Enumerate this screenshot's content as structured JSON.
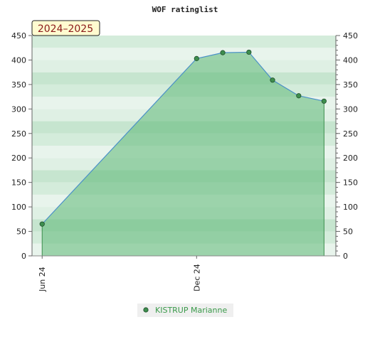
{
  "chart_data": {
    "type": "area",
    "title": "WOF ratinglist",
    "season_badge": "2024–2025",
    "xlabel": "",
    "ylabel": "",
    "ylim": [
      0,
      450
    ],
    "y_ticks": [
      0,
      50,
      100,
      150,
      200,
      250,
      300,
      350,
      400,
      450
    ],
    "x_ticks": [
      {
        "label": "Jun 24",
        "date": "2024-06-01"
      },
      {
        "label": "Dec 24",
        "date": "2024-12-01"
      }
    ],
    "x_range": [
      "2024-05-20",
      "2025-05-15"
    ],
    "grid": "horizontal bands",
    "legend_position": "bottom-center",
    "series": [
      {
        "name": "KISTRUP Marianne",
        "points": [
          {
            "x": "2024-06-01",
            "y": 65
          },
          {
            "x": "2024-12-01",
            "y": 403
          },
          {
            "x": "2025-01-01",
            "y": 415
          },
          {
            "x": "2025-02-01",
            "y": 416
          },
          {
            "x": "2025-03-01",
            "y": 359
          },
          {
            "x": "2025-04-01",
            "y": 327
          },
          {
            "x": "2025-05-01",
            "y": 316
          }
        ]
      }
    ],
    "colors": {
      "area_fill": "#5cb877",
      "line": "#4a90c8",
      "marker": "#3e8e4e",
      "band_light": "#e8f4ec",
      "band_dark": "#c6e5cf",
      "badge_bg": "#fffbd0",
      "badge_text": "#8b1a1a"
    }
  }
}
